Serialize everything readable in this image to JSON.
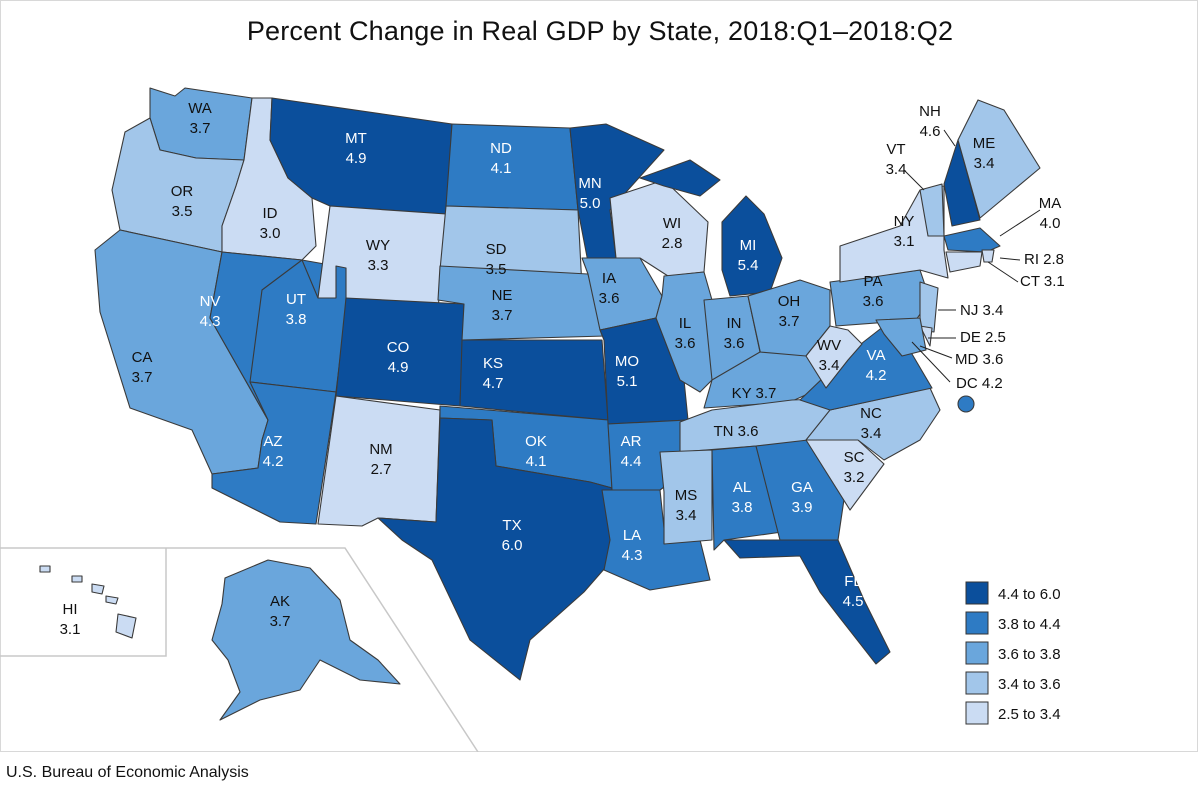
{
  "title": "Percent Change in Real GDP by State, 2018:Q1–2018:Q2",
  "source": "U.S. Bureau of Economic Analysis",
  "legend": [
    {
      "label": "4.4 to 6.0",
      "color": "#0b4f9c"
    },
    {
      "label": "3.8 to 4.4",
      "color": "#2e7bc4"
    },
    {
      "label": "3.6 to 3.8",
      "color": "#6aa6dc"
    },
    {
      "label": "3.4 to 3.6",
      "color": "#a2c6ea"
    },
    {
      "label": "2.5 to 3.4",
      "color": "#cbdcf3"
    }
  ],
  "states": [
    {
      "abbr": "WA",
      "value": "3.7"
    },
    {
      "abbr": "OR",
      "value": "3.5"
    },
    {
      "abbr": "CA",
      "value": "3.7"
    },
    {
      "abbr": "ID",
      "value": "3.0"
    },
    {
      "abbr": "NV",
      "value": "4.3"
    },
    {
      "abbr": "MT",
      "value": "4.9"
    },
    {
      "abbr": "WY",
      "value": "3.3"
    },
    {
      "abbr": "UT",
      "value": "3.8"
    },
    {
      "abbr": "AZ",
      "value": "4.2"
    },
    {
      "abbr": "CO",
      "value": "4.9"
    },
    {
      "abbr": "NM",
      "value": "2.7"
    },
    {
      "abbr": "ND",
      "value": "4.1"
    },
    {
      "abbr": "SD",
      "value": "3.5"
    },
    {
      "abbr": "NE",
      "value": "3.7"
    },
    {
      "abbr": "KS",
      "value": "4.7"
    },
    {
      "abbr": "OK",
      "value": "4.1"
    },
    {
      "abbr": "TX",
      "value": "6.0"
    },
    {
      "abbr": "MN",
      "value": "5.0"
    },
    {
      "abbr": "IA",
      "value": "3.6"
    },
    {
      "abbr": "MO",
      "value": "5.1"
    },
    {
      "abbr": "AR",
      "value": "4.4"
    },
    {
      "abbr": "LA",
      "value": "4.3"
    },
    {
      "abbr": "WI",
      "value": "2.8"
    },
    {
      "abbr": "IL",
      "value": "3.6"
    },
    {
      "abbr": "MI",
      "value": "5.4"
    },
    {
      "abbr": "IN",
      "value": "3.6"
    },
    {
      "abbr": "OH",
      "value": "3.7"
    },
    {
      "abbr": "KY",
      "value": "3.7"
    },
    {
      "abbr": "TN",
      "value": "3.6"
    },
    {
      "abbr": "MS",
      "value": "3.4"
    },
    {
      "abbr": "AL",
      "value": "3.8"
    },
    {
      "abbr": "GA",
      "value": "3.9"
    },
    {
      "abbr": "FL",
      "value": "4.5"
    },
    {
      "abbr": "SC",
      "value": "3.2"
    },
    {
      "abbr": "NC",
      "value": "3.4"
    },
    {
      "abbr": "VA",
      "value": "4.2"
    },
    {
      "abbr": "WV",
      "value": "3.4"
    },
    {
      "abbr": "PA",
      "value": "3.6"
    },
    {
      "abbr": "NY",
      "value": "3.1"
    },
    {
      "abbr": "VT",
      "value": "3.4"
    },
    {
      "abbr": "NH",
      "value": "4.6"
    },
    {
      "abbr": "ME",
      "value": "3.4"
    },
    {
      "abbr": "MA",
      "value": "4.0"
    },
    {
      "abbr": "RI",
      "value": "2.8"
    },
    {
      "abbr": "CT",
      "value": "3.1"
    },
    {
      "abbr": "NJ",
      "value": "3.4"
    },
    {
      "abbr": "DE",
      "value": "2.5"
    },
    {
      "abbr": "MD",
      "value": "3.6"
    },
    {
      "abbr": "DC",
      "value": "4.2"
    },
    {
      "abbr": "AK",
      "value": "3.7"
    },
    {
      "abbr": "HI",
      "value": "3.1"
    }
  ]
}
